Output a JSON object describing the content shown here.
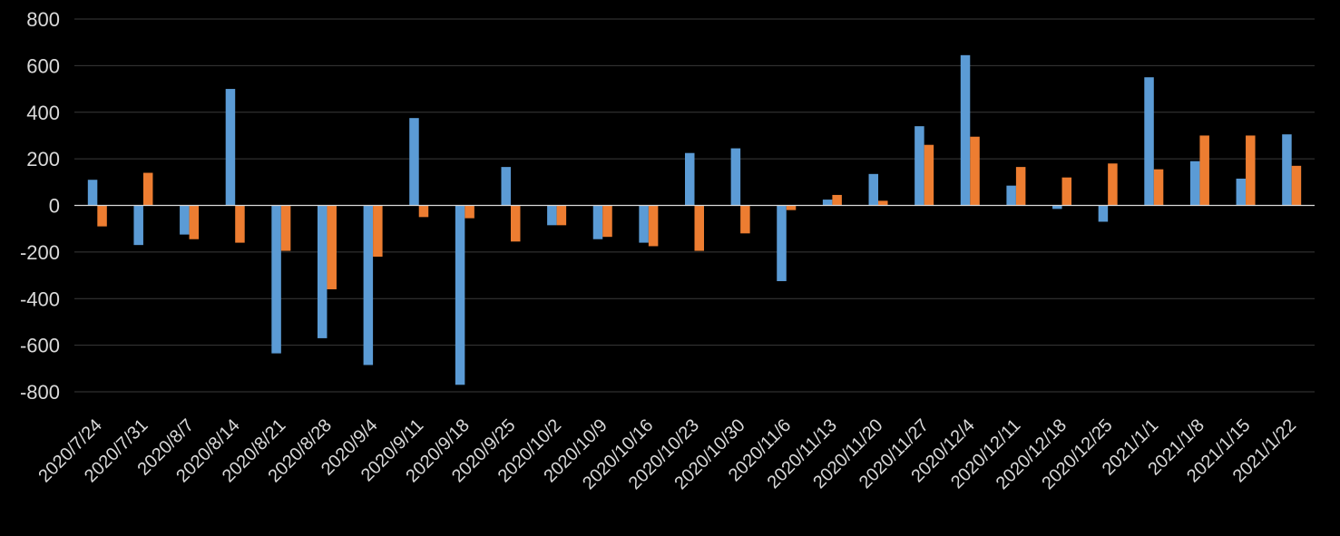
{
  "colors": {
    "background": "#000000",
    "gridline": "#3a3a3a",
    "zero_line": "#d9d9d9",
    "tick_label": "#d9d9d9",
    "series_1": "#5b9bd5",
    "series_2": "#ed7d31"
  },
  "chart_data": {
    "type": "bar",
    "title": "",
    "xlabel": "",
    "ylabel": "",
    "ylim": [
      -800,
      800
    ],
    "yticks": [
      800,
      600,
      400,
      200,
      0,
      -200,
      -400,
      -600,
      -800
    ],
    "grid": true,
    "legend": "none",
    "categories": [
      "2020/7/24",
      "2020/7/31",
      "2020/8/7",
      "2020/8/14",
      "2020/8/21",
      "2020/8/28",
      "2020/9/4",
      "2020/9/11",
      "2020/9/18",
      "2020/9/25",
      "2020/10/2",
      "2020/10/9",
      "2020/10/16",
      "2020/10/23",
      "2020/10/30",
      "2020/11/6",
      "2020/11/13",
      "2020/11/20",
      "2020/11/27",
      "2020/12/4",
      "2020/12/11",
      "2020/12/18",
      "2020/12/25",
      "2021/1/1",
      "2021/1/8",
      "2021/1/15",
      "2021/1/22"
    ],
    "series": [
      {
        "color": "#5b9bd5",
        "values": [
          110,
          -170,
          -125,
          500,
          -635,
          -570,
          -685,
          375,
          -770,
          165,
          -85,
          -145,
          -160,
          225,
          245,
          -325,
          25,
          135,
          340,
          645,
          85,
          -15,
          -70,
          550,
          190,
          115,
          305
        ]
      },
      {
        "color": "#ed7d31",
        "values": [
          -90,
          140,
          -145,
          -160,
          -195,
          -360,
          -220,
          -50,
          -55,
          -155,
          -85,
          -135,
          -175,
          -195,
          -120,
          -20,
          45,
          20,
          260,
          295,
          165,
          120,
          180,
          155,
          300,
          300,
          170
        ]
      }
    ]
  }
}
